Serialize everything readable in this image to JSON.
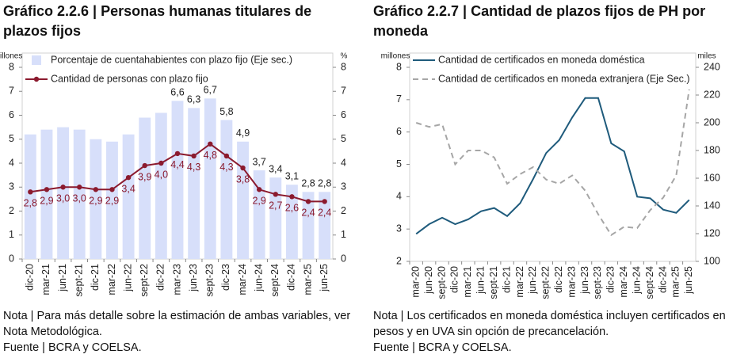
{
  "chart_data": [
    {
      "type": "bar",
      "title": "Gráfico 2.2.6 | Personas humanas titulares de plazos fijos",
      "note": "Nota | Para más detalle sobre la estimación de ambas variables, ver Nota Metodológica.",
      "source": "Fuente | BCRA y COELSA.",
      "y_label": "millones",
      "y2_label": "%",
      "categories": [
        "dic-20",
        "mar-21",
        "jun-21",
        "sept-21",
        "dic-21",
        "mar-22",
        "jun-22",
        "sept-22",
        "dic-22",
        "mar-23",
        "jun-23",
        "sept-23",
        "dic-23",
        "mar-24",
        "jun-24",
        "sept-24",
        "dic-24",
        "mar-25",
        "jun-25"
      ],
      "ylim": [
        0,
        8
      ],
      "yticks": [
        0,
        1,
        2,
        3,
        4,
        5,
        6,
        7,
        8
      ],
      "y2lim": [
        0,
        8
      ],
      "y2ticks": [
        0,
        1,
        2,
        3,
        4,
        5,
        6,
        7,
        8
      ],
      "legend": "top-left",
      "series": [
        {
          "name": "Porcentaje de cuentahabientes con plazo fijo (Eje sec.)",
          "type": "bar",
          "axis": "y2",
          "color": "#d7dffa",
          "values": [
            5.2,
            5.4,
            5.5,
            5.4,
            5.0,
            4.9,
            5.2,
            5.9,
            6.1,
            6.6,
            6.3,
            6.7,
            5.8,
            4.9,
            3.7,
            3.4,
            3.1,
            2.8,
            2.8
          ],
          "value_labels": [
            null,
            null,
            null,
            null,
            null,
            null,
            null,
            null,
            null,
            "6,6",
            "6,3",
            "6,7",
            "5,8",
            "4,9",
            "3,7",
            "3,4",
            "3,1",
            "2,8",
            "2,8"
          ]
        },
        {
          "name": "Cantidad de personas con plazo fijo",
          "type": "line",
          "color": "#8b1a2e",
          "markers": true,
          "values": [
            2.8,
            2.9,
            3.0,
            3.0,
            2.9,
            2.9,
            3.4,
            3.9,
            4.0,
            4.4,
            4.3,
            4.8,
            4.3,
            3.8,
            2.9,
            2.7,
            2.6,
            2.4,
            2.4
          ],
          "value_labels": [
            "2,8",
            "2,9",
            "3,0",
            "3,0",
            "2,9",
            "2,9",
            "3,4",
            "3,9",
            "4,0",
            "4,4",
            "4,3",
            "4,8",
            "4,3",
            "3,8",
            "2,9",
            "2,7",
            "2,6",
            "2,4",
            "2,4"
          ]
        }
      ]
    },
    {
      "type": "line",
      "title": "Gráfico 2.2.7 | Cantidad de plazos fijos de PH por moneda",
      "note": "Nota | Los certificados en moneda doméstica incluyen certificados en pesos y en UVA sin opción de precancelación.",
      "source": "Fuente | BCRA y COELSA.",
      "y_label": "millones",
      "y2_label": "miles",
      "categories": [
        "mar-20",
        "jun-20",
        "sept-20",
        "dic-20",
        "mar-21",
        "jun-21",
        "sept-21",
        "dic-21",
        "mar-22",
        "jun-22",
        "sept-22",
        "dic-22",
        "mar-23",
        "jun-23",
        "sept-23",
        "dic-23",
        "mar-24",
        "jun-24",
        "sept-24",
        "dic-24",
        "mar-25",
        "jun-25"
      ],
      "ylim": [
        2,
        8
      ],
      "yticks": [
        2,
        3,
        4,
        5,
        6,
        7,
        8
      ],
      "y2lim": [
        100,
        240
      ],
      "y2ticks": [
        100,
        120,
        140,
        160,
        180,
        200,
        220,
        240
      ],
      "legend": "top-left",
      "series": [
        {
          "name": "Cantidad de certificados en moneda doméstica",
          "type": "line",
          "color": "#1f5b7c",
          "values": [
            2.85,
            3.15,
            3.35,
            3.15,
            3.3,
            3.55,
            3.65,
            3.4,
            3.8,
            4.55,
            5.35,
            5.75,
            6.45,
            7.05,
            7.05,
            5.65,
            5.4,
            4.0,
            3.95,
            3.6,
            3.5,
            3.9
          ]
        },
        {
          "name": "Cantidad de certificados en moneda extranjera (Eje Sec.)",
          "type": "line",
          "axis": "y2",
          "color": "#a6a6a6",
          "dashed": true,
          "values": [
            200,
            197,
            199,
            170,
            180,
            180,
            175,
            156,
            163,
            168,
            159,
            156,
            162,
            151,
            134,
            119,
            125,
            124,
            137,
            146,
            162,
            224
          ]
        }
      ]
    }
  ]
}
